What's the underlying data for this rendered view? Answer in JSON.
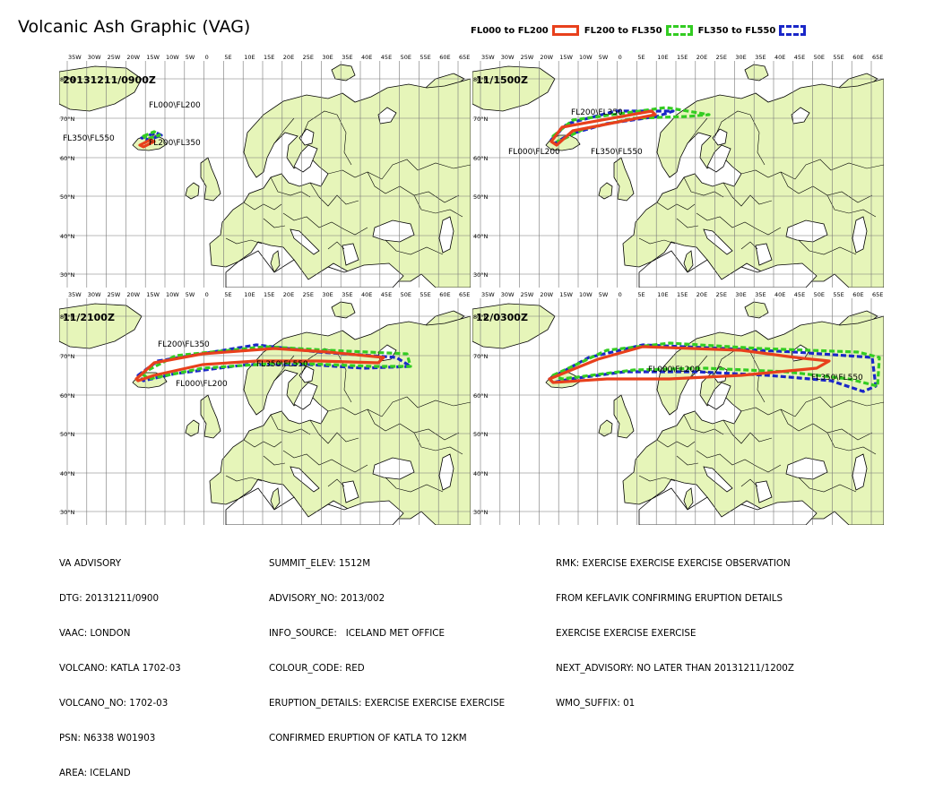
{
  "title": "Volcanic Ash Graphic (VAG)",
  "legend": [
    {
      "label": "FL000 to FL200",
      "color": "#e8401c",
      "style": "solid"
    },
    {
      "label": "FL200 to FL350",
      "color": "#33cc22",
      "style": "dashed"
    },
    {
      "label": "FL350 to FL550",
      "color": "#1a27c8",
      "style": "dashed"
    }
  ],
  "map_labels": {
    "lon_ticks": [
      "35W",
      "30W",
      "25W",
      "20W",
      "15W",
      "10W",
      "5W",
      "0",
      "5E",
      "10E",
      "15E",
      "20E",
      "25E",
      "30E",
      "35E",
      "40E",
      "45E",
      "50E",
      "55E",
      "60E",
      "65E"
    ],
    "lat_ticks": [
      "60°N",
      "70°N",
      "60°N",
      "50°N",
      "40°N",
      "30°N"
    ],
    "lat_ticks_panel": [
      "80°N",
      "70°N",
      "60°N",
      "50°N",
      "40°N",
      "30°N"
    ]
  },
  "panels": [
    {
      "time": "20131211/0900Z",
      "labels": [
        "FL000\\FL200",
        "FL350\\FL550",
        "FL200\\FL350"
      ]
    },
    {
      "time": "11/1500Z",
      "labels": [
        "FL200\\FL350",
        "FL000\\FL200",
        "FL350\\FL550"
      ]
    },
    {
      "time": "11/2100Z",
      "labels": [
        "FL200\\FL350",
        "FL350\\FL550",
        "FL000\\FL200"
      ]
    },
    {
      "time": "12/0300Z",
      "labels": [
        "FL000\\FL200",
        "FL350\\FL550"
      ]
    }
  ],
  "advisory": {
    "col1": [
      "VA ADVISORY",
      "DTG: 20131211/0900",
      "VAAC: LONDON",
      "VOLCANO: KATLA 1702-03",
      "VOLCANO_NO: 1702-03",
      "PSN: N6338 W01903",
      "AREA: ICELAND"
    ],
    "col2": [
      "SUMMIT_ELEV: 1512M",
      "ADVISORY_NO: 2013/002",
      "INFO_SOURCE:   ICELAND MET OFFICE",
      "COLOUR_CODE: RED",
      "ERUPTION_DETAILS: EXERCISE EXERCISE EXERCISE",
      "CONFIRMED ERUPTION OF KATLA TO 12KM"
    ],
    "col3": [
      "RMK: EXERCISE EXERCISE EXERCISE OBSERVATION",
      "FROM KEFLAVIK CONFIRMING ERUPTION DETAILS",
      "EXERCISE EXERCISE EXERCISE",
      "NEXT_ADVISORY: NO LATER THAN 20131211/1200Z",
      "WMO_SUFFIX: 01"
    ]
  },
  "colors": {
    "land": "#e6f5b9",
    "sea": "#ffffff",
    "fl000_fl200": "#e8401c",
    "fl200_fl350": "#33cc22",
    "fl350_fl550": "#1a27c8"
  }
}
